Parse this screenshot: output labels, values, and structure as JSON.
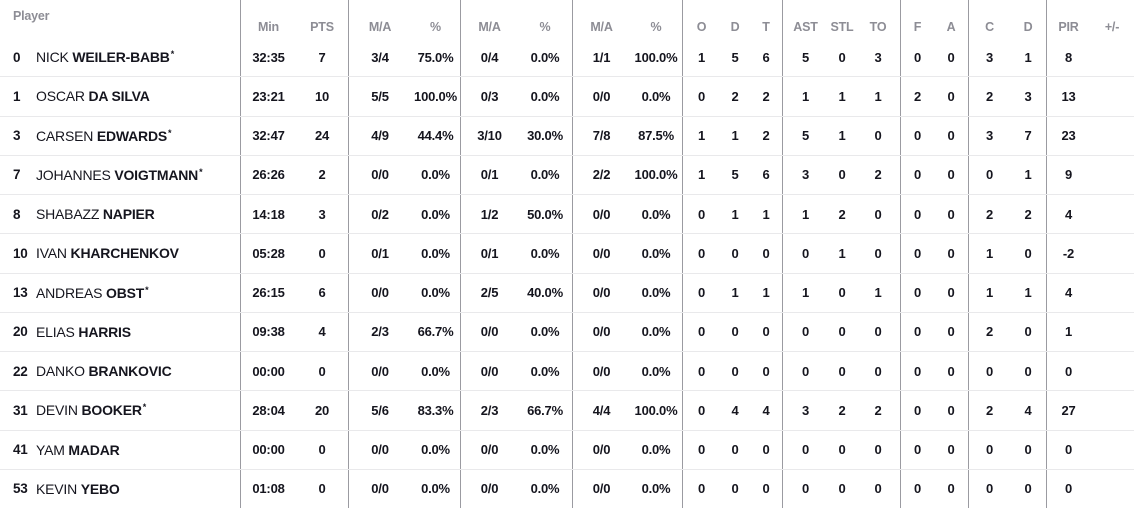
{
  "table": {
    "player_header": "Player",
    "starter_marker": "*",
    "columns": {
      "min": "Min",
      "pts": "PTS",
      "fg2_ma": "M/A",
      "fg2_pct": "%",
      "fg3_ma": "M/A",
      "fg3_pct": "%",
      "ft_ma": "M/A",
      "ft_pct": "%",
      "reb_o": "O",
      "reb_d": "D",
      "reb_t": "T",
      "ast": "AST",
      "stl": "STL",
      "to": "TO",
      "f": "F",
      "a": "A",
      "c": "C",
      "dd": "D",
      "pir": "PIR",
      "pm": "+/-"
    },
    "rows": [
      {
        "num": "0",
        "first": "NICK",
        "last": "WEILER-BABB",
        "starter": true,
        "min": "32:35",
        "pts": "7",
        "fg2_ma": "3/4",
        "fg2_pct": "75.0%",
        "fg3_ma": "0/4",
        "fg3_pct": "0.0%",
        "ft_ma": "1/1",
        "ft_pct": "100.0%",
        "reb_o": "1",
        "reb_d": "5",
        "reb_t": "6",
        "ast": "5",
        "stl": "0",
        "to": "3",
        "f": "0",
        "a": "0",
        "c": "3",
        "dd": "1",
        "pir": "8",
        "pm": ""
      },
      {
        "num": "1",
        "first": "OSCAR",
        "last": "DA SILVA",
        "starter": false,
        "min": "23:21",
        "pts": "10",
        "fg2_ma": "5/5",
        "fg2_pct": "100.0%",
        "fg3_ma": "0/3",
        "fg3_pct": "0.0%",
        "ft_ma": "0/0",
        "ft_pct": "0.0%",
        "reb_o": "0",
        "reb_d": "2",
        "reb_t": "2",
        "ast": "1",
        "stl": "1",
        "to": "1",
        "f": "2",
        "a": "0",
        "c": "2",
        "dd": "3",
        "pir": "13",
        "pm": ""
      },
      {
        "num": "3",
        "first": "CARSEN",
        "last": "EDWARDS",
        "starter": true,
        "min": "32:47",
        "pts": "24",
        "fg2_ma": "4/9",
        "fg2_pct": "44.4%",
        "fg3_ma": "3/10",
        "fg3_pct": "30.0%",
        "ft_ma": "7/8",
        "ft_pct": "87.5%",
        "reb_o": "1",
        "reb_d": "1",
        "reb_t": "2",
        "ast": "5",
        "stl": "1",
        "to": "0",
        "f": "0",
        "a": "0",
        "c": "3",
        "dd": "7",
        "pir": "23",
        "pm": ""
      },
      {
        "num": "7",
        "first": "JOHANNES",
        "last": "VOIGTMANN",
        "starter": true,
        "min": "26:26",
        "pts": "2",
        "fg2_ma": "0/0",
        "fg2_pct": "0.0%",
        "fg3_ma": "0/1",
        "fg3_pct": "0.0%",
        "ft_ma": "2/2",
        "ft_pct": "100.0%",
        "reb_o": "1",
        "reb_d": "5",
        "reb_t": "6",
        "ast": "3",
        "stl": "0",
        "to": "2",
        "f": "0",
        "a": "0",
        "c": "0",
        "dd": "1",
        "pir": "9",
        "pm": ""
      },
      {
        "num": "8",
        "first": "SHABAZZ",
        "last": "NAPIER",
        "starter": false,
        "min": "14:18",
        "pts": "3",
        "fg2_ma": "0/2",
        "fg2_pct": "0.0%",
        "fg3_ma": "1/2",
        "fg3_pct": "50.0%",
        "ft_ma": "0/0",
        "ft_pct": "0.0%",
        "reb_o": "0",
        "reb_d": "1",
        "reb_t": "1",
        "ast": "1",
        "stl": "2",
        "to": "0",
        "f": "0",
        "a": "0",
        "c": "2",
        "dd": "2",
        "pir": "4",
        "pm": ""
      },
      {
        "num": "10",
        "first": "IVAN",
        "last": "KHARCHENKOV",
        "starter": false,
        "min": "05:28",
        "pts": "0",
        "fg2_ma": "0/1",
        "fg2_pct": "0.0%",
        "fg3_ma": "0/1",
        "fg3_pct": "0.0%",
        "ft_ma": "0/0",
        "ft_pct": "0.0%",
        "reb_o": "0",
        "reb_d": "0",
        "reb_t": "0",
        "ast": "0",
        "stl": "1",
        "to": "0",
        "f": "0",
        "a": "0",
        "c": "1",
        "dd": "0",
        "pir": "-2",
        "pm": ""
      },
      {
        "num": "13",
        "first": "ANDREAS",
        "last": "OBST",
        "starter": true,
        "min": "26:15",
        "pts": "6",
        "fg2_ma": "0/0",
        "fg2_pct": "0.0%",
        "fg3_ma": "2/5",
        "fg3_pct": "40.0%",
        "ft_ma": "0/0",
        "ft_pct": "0.0%",
        "reb_o": "0",
        "reb_d": "1",
        "reb_t": "1",
        "ast": "1",
        "stl": "0",
        "to": "1",
        "f": "0",
        "a": "0",
        "c": "1",
        "dd": "1",
        "pir": "4",
        "pm": ""
      },
      {
        "num": "20",
        "first": "ELIAS",
        "last": "HARRIS",
        "starter": false,
        "min": "09:38",
        "pts": "4",
        "fg2_ma": "2/3",
        "fg2_pct": "66.7%",
        "fg3_ma": "0/0",
        "fg3_pct": "0.0%",
        "ft_ma": "0/0",
        "ft_pct": "0.0%",
        "reb_o": "0",
        "reb_d": "0",
        "reb_t": "0",
        "ast": "0",
        "stl": "0",
        "to": "0",
        "f": "0",
        "a": "0",
        "c": "2",
        "dd": "0",
        "pir": "1",
        "pm": ""
      },
      {
        "num": "22",
        "first": "DANKO",
        "last": "BRANKOVIC",
        "starter": false,
        "min": "00:00",
        "pts": "0",
        "fg2_ma": "0/0",
        "fg2_pct": "0.0%",
        "fg3_ma": "0/0",
        "fg3_pct": "0.0%",
        "ft_ma": "0/0",
        "ft_pct": "0.0%",
        "reb_o": "0",
        "reb_d": "0",
        "reb_t": "0",
        "ast": "0",
        "stl": "0",
        "to": "0",
        "f": "0",
        "a": "0",
        "c": "0",
        "dd": "0",
        "pir": "0",
        "pm": ""
      },
      {
        "num": "31",
        "first": "DEVIN",
        "last": "BOOKER",
        "starter": true,
        "min": "28:04",
        "pts": "20",
        "fg2_ma": "5/6",
        "fg2_pct": "83.3%",
        "fg3_ma": "2/3",
        "fg3_pct": "66.7%",
        "ft_ma": "4/4",
        "ft_pct": "100.0%",
        "reb_o": "0",
        "reb_d": "4",
        "reb_t": "4",
        "ast": "3",
        "stl": "2",
        "to": "2",
        "f": "0",
        "a": "0",
        "c": "2",
        "dd": "4",
        "pir": "27",
        "pm": ""
      },
      {
        "num": "41",
        "first": "YAM",
        "last": "MADAR",
        "starter": false,
        "min": "00:00",
        "pts": "0",
        "fg2_ma": "0/0",
        "fg2_pct": "0.0%",
        "fg3_ma": "0/0",
        "fg3_pct": "0.0%",
        "ft_ma": "0/0",
        "ft_pct": "0.0%",
        "reb_o": "0",
        "reb_d": "0",
        "reb_t": "0",
        "ast": "0",
        "stl": "0",
        "to": "0",
        "f": "0",
        "a": "0",
        "c": "0",
        "dd": "0",
        "pir": "0",
        "pm": ""
      },
      {
        "num": "53",
        "first": "KEVIN",
        "last": "YEBO",
        "starter": false,
        "min": "01:08",
        "pts": "0",
        "fg2_ma": "0/0",
        "fg2_pct": "0.0%",
        "fg3_ma": "0/0",
        "fg3_pct": "0.0%",
        "ft_ma": "0/0",
        "ft_pct": "0.0%",
        "reb_o": "0",
        "reb_d": "0",
        "reb_t": "0",
        "ast": "0",
        "stl": "0",
        "to": "0",
        "f": "0",
        "a": "0",
        "c": "0",
        "dd": "0",
        "pir": "0",
        "pm": ""
      }
    ]
  },
  "colors": {
    "data_text": "#15151e",
    "header_text": "#8d8d95",
    "column_divider": "#9b9ba1",
    "row_divider": "#e9e9eb",
    "background": "#ffffff"
  }
}
